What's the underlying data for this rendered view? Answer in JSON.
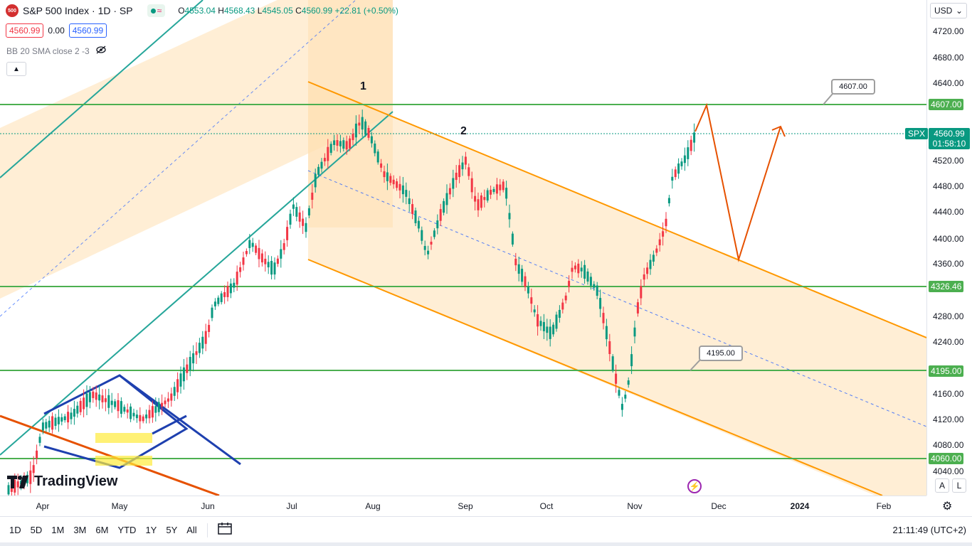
{
  "header": {
    "symbol_badge": "500",
    "title": "S&P 500 Index · 1D · SP",
    "open_label": "O",
    "open": "4553.04",
    "high_label": "H",
    "high": "4568.43",
    "low_label": "L",
    "low": "4545.05",
    "close_label": "C",
    "close": "4560.99",
    "change": "+22.81 (+0.50%)"
  },
  "price_boxes": {
    "sell": "4560.99",
    "spread": "0.00",
    "buy": "4560.99"
  },
  "indicator": {
    "label": "BB 20 SMA close 2 -3"
  },
  "price_axis": {
    "currency": "USD",
    "ticks": [
      "4720.00",
      "4680.00",
      "4640.00",
      "4520.00",
      "4480.00",
      "4440.00",
      "4400.00",
      "4360.00",
      "4280.00",
      "4240.00",
      "4160.00",
      "4120.00",
      "4080.00",
      "4040.00"
    ],
    "levels": [
      "4607.00",
      "4326.46",
      "4195.00",
      "4060.00"
    ],
    "current_price": "4560.99",
    "countdown": "01:58:10",
    "current_symbol": "SPX",
    "auto_button": "A",
    "log_button": "L"
  },
  "time_axis": {
    "labels": [
      "Apr",
      "May",
      "Jun",
      "Jul",
      "Aug",
      "Sep",
      "Oct",
      "Nov",
      "Dec",
      "2024",
      "Feb"
    ]
  },
  "annotations": {
    "wave1": "1",
    "wave2": "2",
    "callout_top": "4607.00",
    "callout_mid": "4195.00"
  },
  "logo": {
    "text": "TradingView"
  },
  "bottom_bar": {
    "periods": [
      "1D",
      "5D",
      "1M",
      "3M",
      "6M",
      "YTD",
      "1Y",
      "5Y",
      "All"
    ],
    "clock": "21:11:49 (UTC+2)"
  },
  "colors": {
    "up": "#089981",
    "down": "#f23645",
    "level": "#4caf50",
    "channel": "#ff9800",
    "arrow": "#e65100",
    "diamond": "#1e40af"
  }
}
